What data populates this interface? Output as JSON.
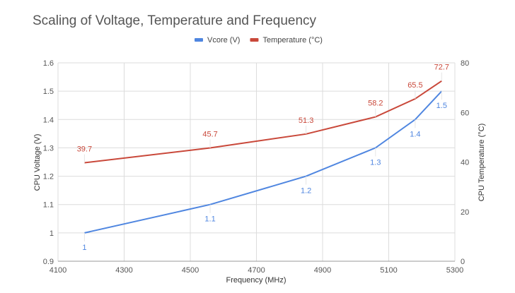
{
  "chart_data": {
    "type": "line",
    "title": "Scaling of Voltage, Temperature and Frequency",
    "xlabel": "Frequency (MHz)",
    "ylabel": "CPU Voltage (V)",
    "y2label": "CPU Temperature (°C)",
    "xlim": [
      4100,
      5300
    ],
    "ylim": [
      0.9,
      1.6
    ],
    "y2lim": [
      0,
      80
    ],
    "x_ticks": [
      4100,
      4300,
      4500,
      4700,
      4900,
      5100,
      5300
    ],
    "y_ticks": [
      "0.9",
      "1",
      "1.1",
      "1.2",
      "1.3",
      "1.4",
      "1.5",
      "1.6"
    ],
    "y2_ticks": [
      "0",
      "20",
      "40",
      "60",
      "80"
    ],
    "grid": true,
    "legend_placement": "top",
    "x": [
      4180,
      4560,
      4850,
      5060,
      5180,
      5260
    ],
    "series": [
      {
        "name": "Vcore (V)",
        "axis": "left",
        "color": "#4f86e0",
        "values": [
          1.0,
          1.1,
          1.2,
          1.3,
          1.4,
          1.5
        ],
        "labels": [
          "1",
          "1.1",
          "1.2",
          "1.3",
          "1.4",
          "1.5"
        ]
      },
      {
        "name": "Temperature (°C)",
        "axis": "right",
        "color": "#c9483a",
        "values": [
          39.7,
          45.7,
          51.3,
          58.2,
          65.5,
          72.7
        ],
        "labels": [
          "39.7",
          "45.7",
          "51.3",
          "58.2",
          "65.5",
          "72.7"
        ]
      }
    ]
  }
}
